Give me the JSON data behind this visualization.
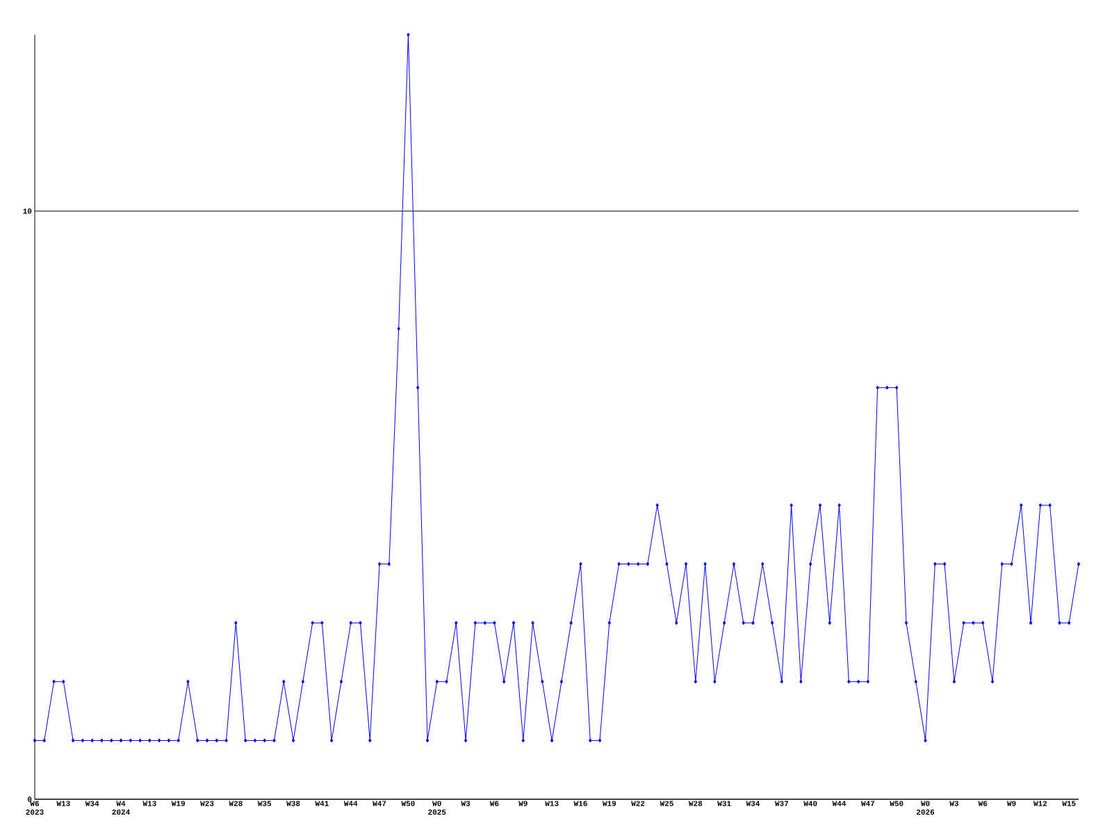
{
  "chart_data": {
    "type": "line",
    "categories": [
      "W6 2023",
      null,
      null,
      "W13",
      null,
      null,
      "W34",
      null,
      null,
      "W4 2024",
      null,
      null,
      "W13",
      null,
      null,
      "W19",
      null,
      null,
      "W23",
      null,
      null,
      "W28",
      null,
      null,
      "W35",
      null,
      null,
      "W38",
      null,
      null,
      "W41",
      null,
      null,
      "W44",
      null,
      null,
      "W47",
      null,
      null,
      "W50",
      null,
      null,
      "W0 2025",
      null,
      null,
      "W3",
      null,
      null,
      "W6",
      null,
      null,
      "W9",
      null,
      null,
      "W13",
      null,
      null,
      "W16",
      null,
      null,
      "W19",
      null,
      null,
      "W22",
      null,
      null,
      "W25",
      null,
      null,
      "W28",
      null,
      null,
      "W31",
      null,
      null,
      "W34",
      null,
      null,
      "W37",
      null,
      null,
      "W40",
      null,
      null,
      "W44",
      null,
      null,
      "W47",
      null,
      null,
      "W50",
      null,
      null,
      "W0 2026",
      null,
      null,
      "W3",
      null,
      null,
      "W6",
      null,
      null,
      "W9",
      null,
      null,
      "W12",
      null,
      null,
      "W15",
      null
    ],
    "values": [
      1,
      1,
      2,
      2,
      1,
      1,
      1,
      1,
      1,
      1,
      1,
      1,
      1,
      1,
      1,
      1,
      2,
      1,
      1,
      1,
      1,
      3,
      1,
      1,
      1,
      1,
      2,
      1,
      2,
      3,
      3,
      1,
      2,
      3,
      3,
      1,
      4,
      4,
      8,
      13,
      7,
      1,
      2,
      2,
      3,
      1,
      3,
      3,
      3,
      2,
      3,
      1,
      3,
      2,
      1,
      2,
      3,
      4,
      1,
      1,
      3,
      4,
      4,
      4,
      4,
      5,
      4,
      3,
      4,
      2,
      4,
      2,
      3,
      4,
      3,
      3,
      4,
      3,
      2,
      5,
      2,
      4,
      5,
      3,
      5,
      2,
      2,
      2,
      7,
      7,
      7,
      3,
      2,
      1,
      4,
      4,
      2,
      3,
      3,
      3,
      2,
      4,
      4,
      5,
      3,
      5,
      5,
      3,
      3,
      4
    ],
    "color": "#0000ff",
    "marker": "diamond",
    "line_style": "solid",
    "ylim": [
      0,
      13
    ],
    "yticks": [
      0,
      10
    ],
    "grid": "y"
  }
}
